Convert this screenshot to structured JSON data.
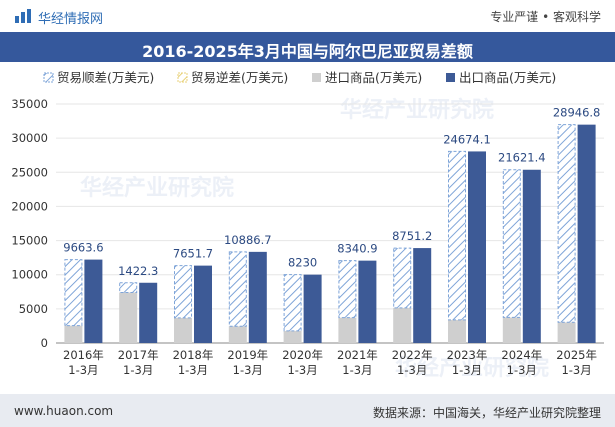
{
  "header": {
    "brand": "华经情报网",
    "tagline": "专业严谨 • 客观科学",
    "logo_icon": "bar-logo-icon"
  },
  "footer": {
    "website": "www.huaon.com",
    "source": "数据来源：中国海关，华经产业研究院整理"
  },
  "watermark": "华经产业研究院",
  "colors": {
    "title_band": "#35589c",
    "export": "#3d5a96",
    "import": "#cfcfcf",
    "surplus_stroke": "#7ea4d8",
    "deficit_stroke": "#e8d27a"
  },
  "chart_data": {
    "type": "bar",
    "title": "2016-2025年3月中国与阿尔巴尼亚贸易差额",
    "categories": [
      [
        "2016年",
        "1-3月"
      ],
      [
        "2017年",
        "1-3月"
      ],
      [
        "2018年",
        "1-3月"
      ],
      [
        "2019年",
        "1-3月"
      ],
      [
        "2020年",
        "1-3月"
      ],
      [
        "2021年",
        "1-3月"
      ],
      [
        "2022年",
        "1-3月"
      ],
      [
        "2023年",
        "1-3月"
      ],
      [
        "2024年",
        "1-3月"
      ],
      [
        "2025年",
        "1-3月"
      ]
    ],
    "series": [
      {
        "name": "贸易顺差(万美元)",
        "values": [
          9663.6,
          1422.3,
          7651.7,
          10886.7,
          8230,
          8340.9,
          8751.2,
          24674.1,
          21621.4,
          28946.8
        ]
      },
      {
        "name": "贸易逆差(万美元)",
        "values": [
          0,
          0,
          0,
          0,
          0,
          0,
          0,
          0,
          0,
          0
        ]
      },
      {
        "name": "进口商品(万美元)",
        "values": [
          2550,
          7400,
          3680,
          2460,
          1780,
          3720,
          5150,
          3380,
          3750,
          3030
        ]
      },
      {
        "name": "出口商品(万美元)",
        "values": [
          12213.6,
          8822.3,
          11331.7,
          13346.7,
          10010,
          12060.9,
          13901.2,
          28054.1,
          25371.4,
          31976.8
        ]
      }
    ],
    "data_labels": [
      "9663.6",
      "1422.3",
      "7651.7",
      "10886.7",
      "8230",
      "8340.9",
      "8751.2",
      "24674.1",
      "21621.4",
      "28946.8"
    ],
    "ylim": [
      0,
      35000
    ],
    "yticks": [
      0,
      5000,
      10000,
      15000,
      20000,
      25000,
      30000,
      35000
    ],
    "legend_position": "top",
    "grid": true
  }
}
